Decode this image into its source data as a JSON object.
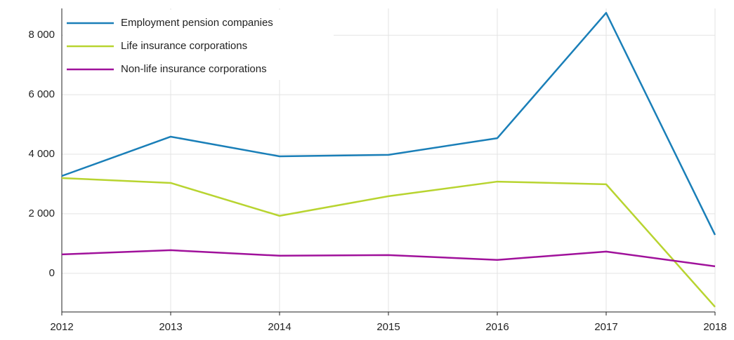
{
  "chart_data": {
    "type": "line",
    "x": [
      2012,
      2013,
      2014,
      2015,
      2016,
      2017,
      2018
    ],
    "xlim": [
      2012,
      2018
    ],
    "xticks": [
      2012,
      2013,
      2014,
      2015,
      2016,
      2017,
      2018
    ],
    "ylim": [
      -1300,
      8900
    ],
    "yticks": [
      0,
      {
        "value": 2000,
        "label": "2 000"
      },
      {
        "value": 4000,
        "label": "4 000"
      },
      {
        "value": 6000,
        "label": "6 000"
      },
      {
        "value": 8000,
        "label": "8 000"
      }
    ],
    "grid": true,
    "legend": "upper left",
    "series": [
      {
        "name": "Employment pension companies",
        "color": "#1a7fb8",
        "values": [
          3270,
          4590,
          3930,
          3980,
          4540,
          8750,
          1290
        ]
      },
      {
        "name": "Life insurance corporations",
        "color": "#b8d430",
        "values": [
          3200,
          3035,
          1930,
          2590,
          3080,
          2990,
          -1130
        ]
      },
      {
        "name": "Non-life insurance corporations",
        "color": "#a0119b",
        "values": [
          635,
          775,
          590,
          610,
          450,
          730,
          235
        ]
      }
    ]
  }
}
